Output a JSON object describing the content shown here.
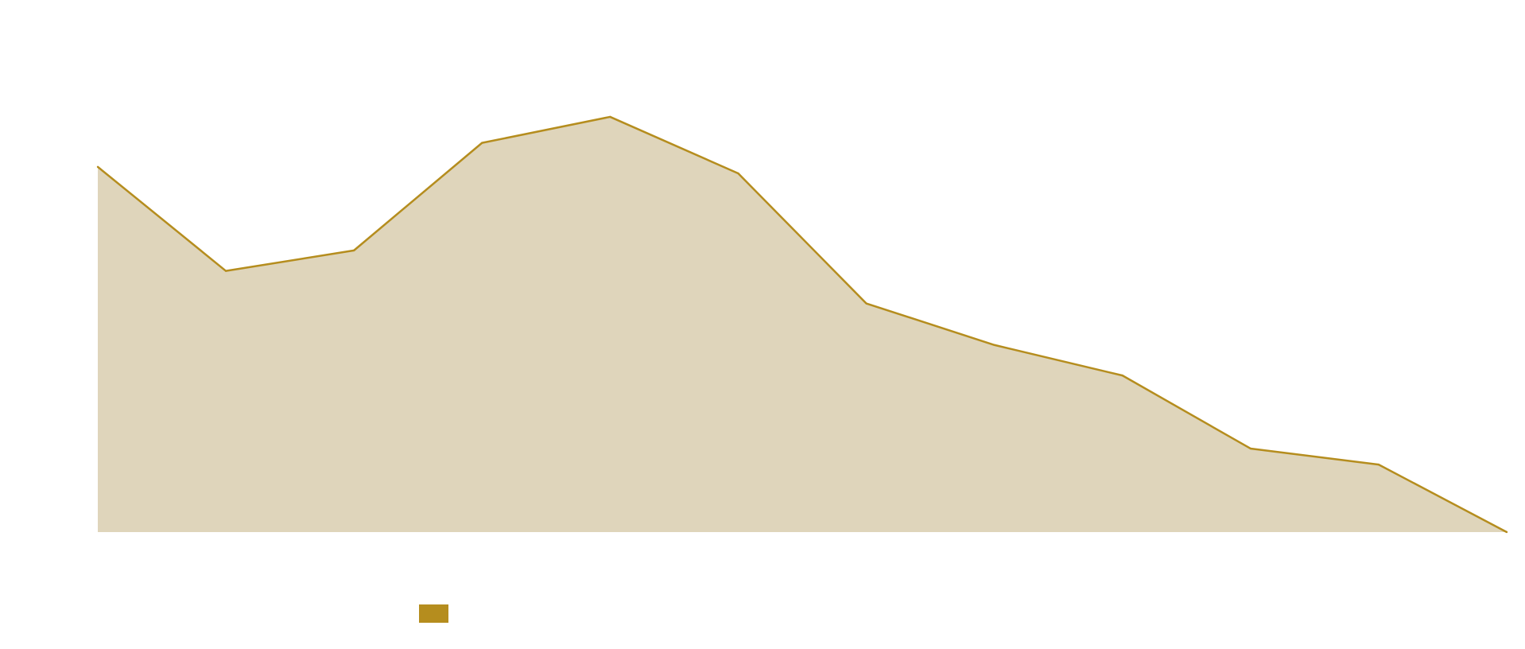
{
  "chart_data": {
    "type": "area",
    "title": "",
    "xlabel": "",
    "ylabel": "",
    "x": [
      0,
      1,
      2,
      3,
      4,
      5,
      6,
      7,
      8,
      9,
      10,
      11
    ],
    "ylim": [
      0,
      100
    ],
    "series": [
      {
        "values": [
          73,
          52.2,
          56.3,
          77.8,
          83,
          71.7,
          45.7,
          37.4,
          31.3,
          16.7,
          13.5,
          0
        ],
        "color": "#b58d1e",
        "fill": "#dfd5bb"
      }
    ],
    "grid": false,
    "legend": {
      "placement": "bottom",
      "swatch_color": "#b58d1e"
    }
  }
}
